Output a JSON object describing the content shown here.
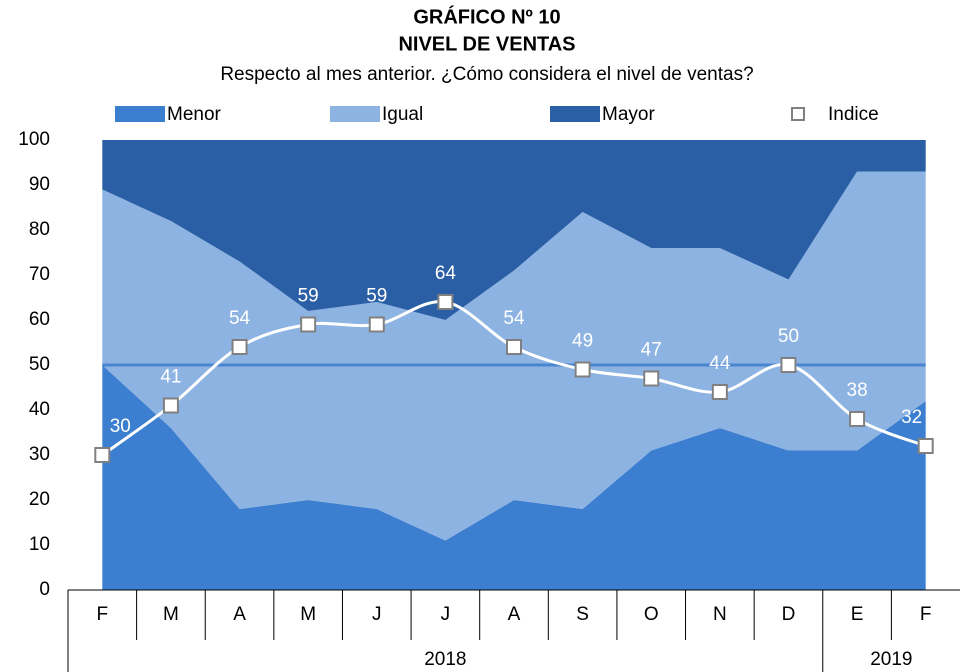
{
  "chart_data": {
    "type": "stacked_area",
    "title": "GRÁFICO Nº 10",
    "subtitle": "NIVEL DE VENTAS",
    "description": "Respecto al mes anterior. ¿Cómo considera el nivel de ventas?",
    "category_groups": [
      {
        "label": "2018",
        "categories": [
          "F",
          "M",
          "A",
          "M",
          "J",
          "J",
          "A",
          "S",
          "O",
          "N",
          "D"
        ]
      },
      {
        "label": "2019",
        "categories": [
          "E",
          "F"
        ]
      }
    ],
    "series": [
      {
        "name": "Menor",
        "color": "#3c7ecf",
        "values": [
          50,
          36,
          18,
          20,
          18,
          11,
          20,
          18,
          31,
          36,
          31,
          31,
          42
        ]
      },
      {
        "name": "Igual",
        "color": "#8db3e2",
        "values": [
          39,
          46,
          55,
          42,
          46,
          49,
          51,
          66,
          45,
          40,
          38,
          62,
          51
        ]
      },
      {
        "name": "Mayor",
        "color": "#2a5fa6",
        "values": [
          11,
          18,
          27,
          38,
          36,
          40,
          29,
          16,
          24,
          24,
          31,
          7,
          7
        ]
      }
    ],
    "line_series": {
      "type": "line",
      "name": "Indice",
      "color": "#ffffff",
      "marker_edge": "#808080",
      "values": [
        30,
        41,
        54,
        59,
        59,
        64,
        54,
        49,
        47,
        44,
        50,
        38,
        32
      ]
    },
    "reference_line": {
      "value": 50,
      "color": "#4a86d0"
    },
    "ylim": [
      0,
      100
    ],
    "yticks": [
      0,
      10,
      20,
      30,
      40,
      50,
      60,
      70,
      80,
      90,
      100
    ],
    "legend": "top"
  }
}
